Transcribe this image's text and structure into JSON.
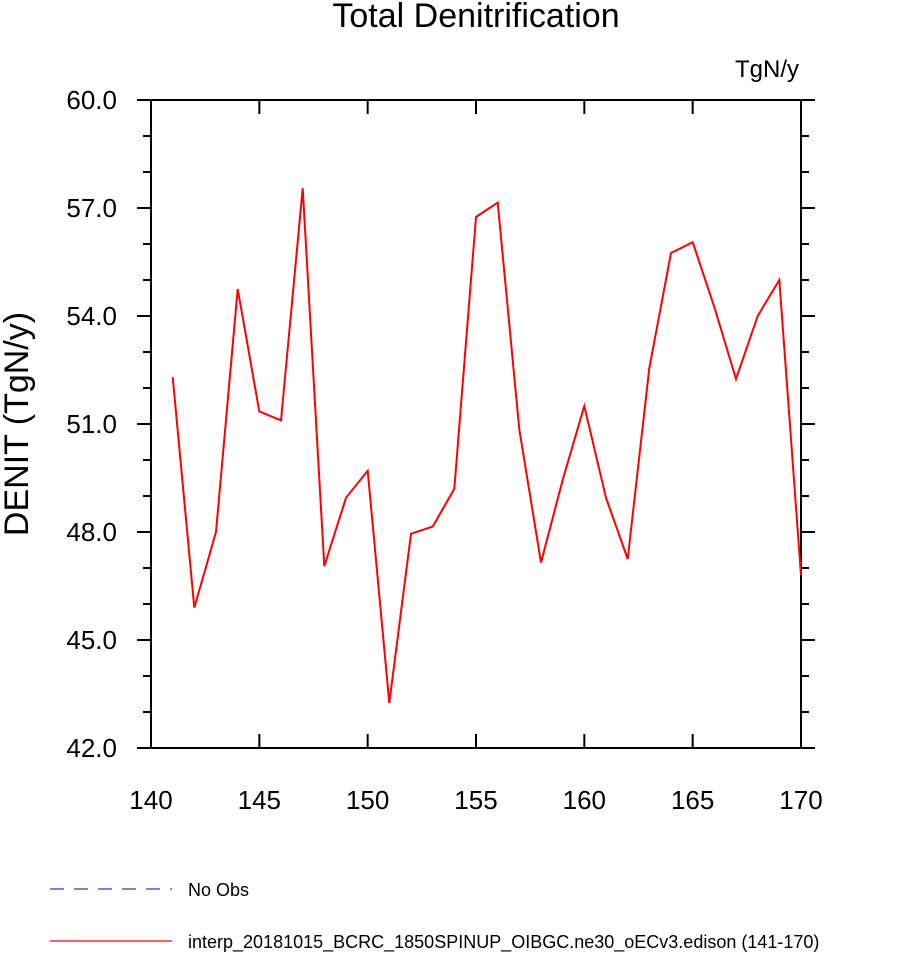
{
  "chart_data": {
    "type": "line",
    "title": "Total Denitrification",
    "units_label": "TgN/y",
    "ylabel": "DENIT  (TgN/y)",
    "xlabel": "",
    "xlim": [
      140,
      170
    ],
    "ylim": [
      42.0,
      60.0
    ],
    "x_ticks": [
      "140",
      "145",
      "150",
      "155",
      "160",
      "165",
      "170"
    ],
    "y_ticks": [
      "42.0",
      "45.0",
      "48.0",
      "51.0",
      "54.0",
      "57.0",
      "60.0"
    ],
    "grid": false,
    "series": [
      {
        "name": "interp_20181015_BCRC_1850SPINUP_OIBGC.ne30_oECv3.edison (141-170)",
        "color": "#ff0000",
        "x": [
          141,
          142,
          143,
          144,
          145,
          146,
          147,
          148,
          149,
          150,
          151,
          152,
          153,
          154,
          155,
          156,
          157,
          158,
          159,
          160,
          161,
          162,
          163,
          164,
          165,
          166,
          167,
          168,
          169,
          170
        ],
        "values": [
          52.3,
          45.9,
          48.0,
          54.75,
          51.35,
          51.1,
          57.55,
          47.05,
          48.95,
          49.7,
          43.25,
          47.95,
          48.15,
          49.2,
          56.75,
          57.15,
          50.85,
          47.15,
          49.45,
          51.5,
          48.95,
          47.25,
          52.55,
          55.75,
          56.05,
          54.25,
          52.25,
          54.0,
          55.0,
          46.8
        ]
      }
    ],
    "legend": [
      {
        "label": "No Obs",
        "color": "#3333cc",
        "dash": true
      },
      {
        "label": "interp_20181015_BCRC_1850SPINUP_OIBGC.ne30_oECv3.edison (141-170)",
        "color": "#ff0000",
        "dash": false
      }
    ],
    "legend_position": "bottom"
  }
}
